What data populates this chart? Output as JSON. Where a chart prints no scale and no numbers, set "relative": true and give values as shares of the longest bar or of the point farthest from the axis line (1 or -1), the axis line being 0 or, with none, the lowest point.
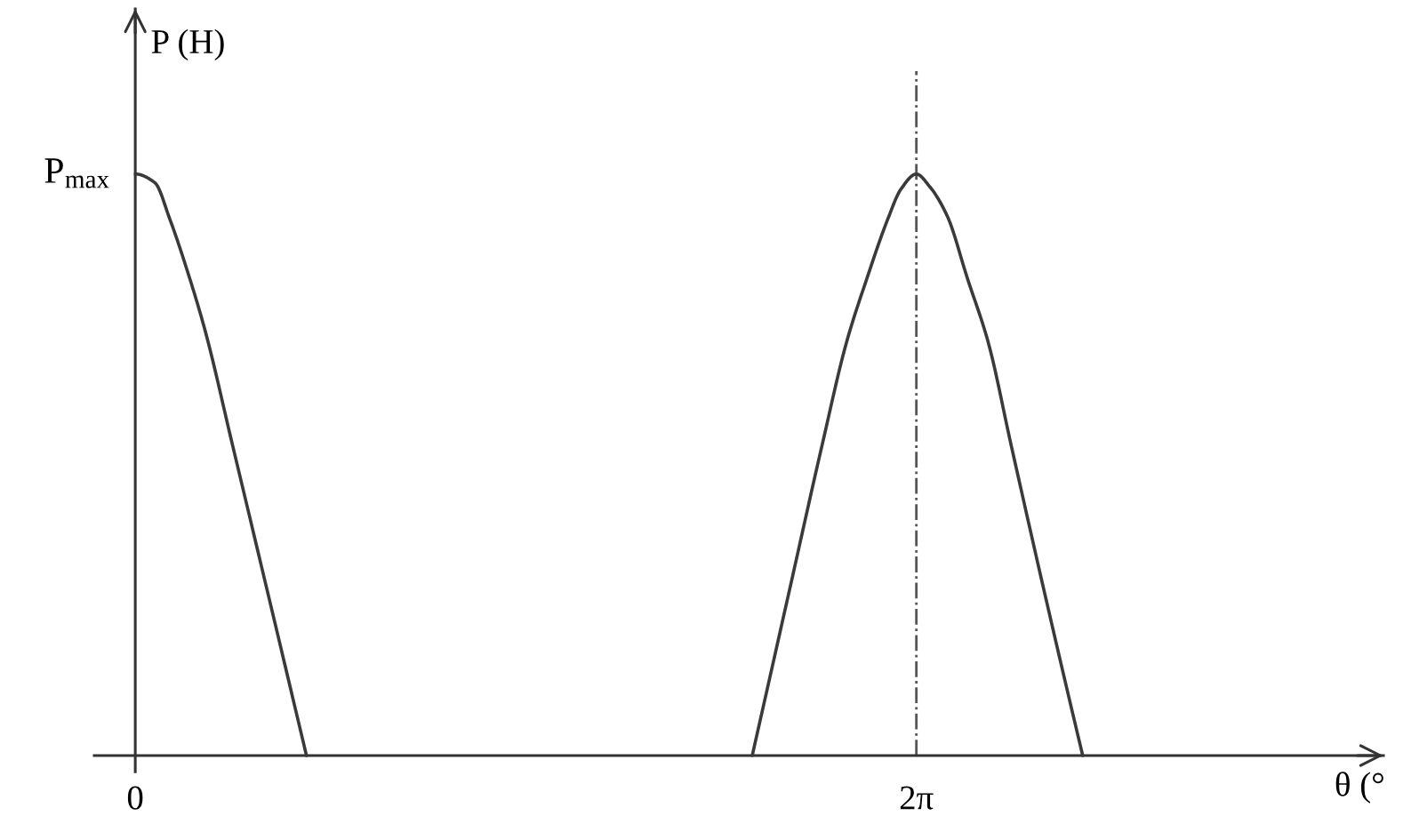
{
  "chart_data": {
    "type": "line",
    "relative": true,
    "xlabel": "θ (°",
    "ylabel": "P (H)",
    "annotations": [
      {
        "text": "P$_{max}$",
        "x": 0,
        "y": 1
      }
    ],
    "x": [
      0,
      0.158,
      0.277,
      0.421,
      0.564,
      0.78,
      1.079,
      1.377,
      3.15,
      4.963,
      5.245,
      5.527,
      5.719,
      5.886,
      6.054,
      6.159,
      6.283,
      6.388,
      6.531,
      6.693,
      6.863,
      7.043,
      7.327,
      7.621
    ],
    "values": [
      1,
      0.985,
      0.923,
      0.832,
      0.729,
      0.536,
      0.268,
      0,
      null,
      0,
      0.268,
      0.536,
      0.709,
      0.821,
      0.923,
      0.974,
      1,
      0.979,
      0.928,
      0.821,
      0.709,
      0.536,
      0.268,
      0
    ],
    "color": "#3a3a3a",
    "xlim": [
      -0.33,
      10.04
    ],
    "xticks": [
      {
        "value": 0,
        "label": "0"
      },
      {
        "value": 6.283,
        "label": "2π"
      }
    ],
    "ref_lines": [
      {
        "axis": "x",
        "value": 6.283,
        "color": "#555555",
        "line_style": "dashdot"
      }
    ]
  }
}
